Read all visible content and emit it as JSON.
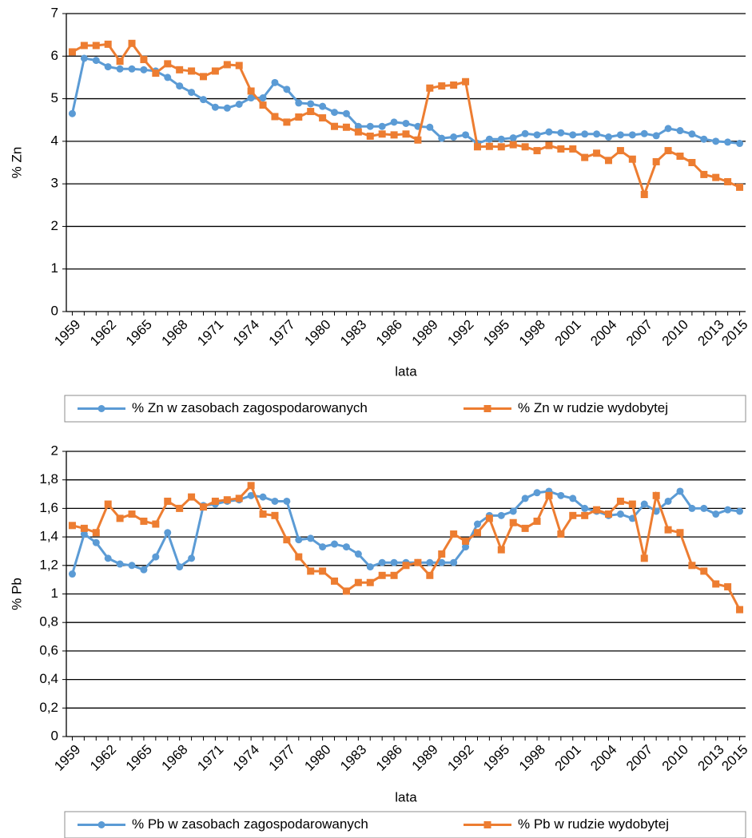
{
  "chart_data": [
    {
      "type": "line",
      "x_label": "lata",
      "y_label": "% Zn",
      "legend": "bottom",
      "grid": true,
      "categories": [
        1959,
        null,
        null,
        1962,
        null,
        null,
        1965,
        null,
        null,
        1968,
        null,
        null,
        1971,
        null,
        null,
        1974,
        null,
        null,
        1977,
        null,
        null,
        1980,
        null,
        null,
        1983,
        null,
        null,
        1986,
        null,
        null,
        1989,
        null,
        null,
        1992,
        null,
        null,
        1995,
        null,
        null,
        1998,
        null,
        null,
        2001,
        null,
        null,
        2004,
        null,
        null,
        2007,
        null,
        null,
        2010,
        null,
        null,
        2013,
        null,
        2015
      ],
      "ylim": [
        0,
        7
      ],
      "yticks": [
        0,
        1,
        2,
        3,
        4,
        5,
        6,
        7
      ],
      "series": [
        {
          "name": "% Zn w zasobach zagospodarowanych",
          "color": "#5b9bd5",
          "marker": "circle",
          "values": [
            4.65,
            5.95,
            5.9,
            5.75,
            5.7,
            5.7,
            5.68,
            5.65,
            5.5,
            5.3,
            5.15,
            4.98,
            4.8,
            4.78,
            4.87,
            5.02,
            5.02,
            5.38,
            5.22,
            4.9,
            4.88,
            4.82,
            4.68,
            4.65,
            4.35,
            4.35,
            4.35,
            4.45,
            4.42,
            4.35,
            4.33,
            4.07,
            4.1,
            4.15,
            3.95,
            4.05,
            4.05,
            4.08,
            4.18,
            4.15,
            4.22,
            4.2,
            4.15,
            4.17,
            4.17,
            4.1,
            4.15,
            4.15,
            4.18,
            4.13,
            4.3,
            4.25,
            4.17,
            4.05,
            4.0,
            3.98,
            3.95
          ]
        },
        {
          "name": "% Zn w rudzie wydobytej",
          "color": "#ed7d31",
          "marker": "square",
          "values": [
            6.1,
            6.25,
            6.25,
            6.28,
            5.88,
            6.3,
            5.92,
            5.6,
            5.82,
            5.68,
            5.65,
            5.52,
            5.65,
            5.8,
            5.78,
            5.18,
            4.85,
            4.58,
            4.45,
            4.57,
            4.7,
            4.55,
            4.35,
            4.33,
            4.22,
            4.12,
            4.17,
            4.15,
            4.17,
            4.03,
            5.25,
            5.3,
            5.32,
            5.4,
            3.87,
            3.88,
            3.87,
            3.92,
            3.87,
            3.78,
            3.9,
            3.82,
            3.82,
            3.62,
            3.72,
            3.55,
            3.78,
            3.58,
            2.75,
            3.52,
            3.78,
            3.65,
            3.5,
            3.22,
            3.15,
            3.05,
            2.92
          ]
        }
      ]
    },
    {
      "type": "line",
      "x_label": "lata",
      "y_label": "% Pb",
      "legend": "bottom",
      "grid": true,
      "categories": [
        1959,
        null,
        null,
        1962,
        null,
        null,
        1965,
        null,
        null,
        1968,
        null,
        null,
        1971,
        null,
        null,
        1974,
        null,
        null,
        1977,
        null,
        null,
        1980,
        null,
        null,
        1983,
        null,
        null,
        1986,
        null,
        null,
        1989,
        null,
        null,
        1992,
        null,
        null,
        1995,
        null,
        null,
        1998,
        null,
        null,
        2001,
        null,
        null,
        2004,
        null,
        null,
        2007,
        null,
        null,
        2010,
        null,
        null,
        2013,
        null,
        2015
      ],
      "ylim": [
        0,
        2
      ],
      "yticks": [
        0,
        {
          "value": 0.2,
          "label": "0,2"
        },
        {
          "value": 0.4,
          "label": "0,4"
        },
        {
          "value": 0.6,
          "label": "0,6"
        },
        {
          "value": 0.8,
          "label": "0,8"
        },
        1,
        {
          "value": 1.2,
          "label": "1,2"
        },
        {
          "value": 1.4,
          "label": "1,4"
        },
        {
          "value": 1.6,
          "label": "1,6"
        },
        {
          "value": 1.8,
          "label": "1,8"
        },
        2
      ],
      "series": [
        {
          "name": "% Pb w zasobach zagospodarowanych",
          "color": "#5b9bd5",
          "marker": "circle",
          "values": [
            1.14,
            1.42,
            1.36,
            1.25,
            1.21,
            1.2,
            1.17,
            1.26,
            1.43,
            1.19,
            1.25,
            1.62,
            1.63,
            1.65,
            1.66,
            1.69,
            1.68,
            1.65,
            1.65,
            1.38,
            1.39,
            1.33,
            1.35,
            1.33,
            1.28,
            1.19,
            1.22,
            1.22,
            1.22,
            1.22,
            1.22,
            1.22,
            1.22,
            1.33,
            1.49,
            1.55,
            1.55,
            1.58,
            1.67,
            1.71,
            1.72,
            1.69,
            1.67,
            1.6,
            1.58,
            1.55,
            1.56,
            1.53,
            1.63,
            1.58,
            1.65,
            1.72,
            1.6,
            1.6,
            1.56,
            1.59,
            1.58
          ]
        },
        {
          "name": "% Pb w rudzie wydobytej",
          "color": "#ed7d31",
          "marker": "square",
          "values": [
            1.48,
            1.46,
            1.43,
            1.63,
            1.53,
            1.56,
            1.51,
            1.49,
            1.65,
            1.6,
            1.68,
            1.61,
            1.65,
            1.66,
            1.67,
            1.76,
            1.56,
            1.55,
            1.38,
            1.26,
            1.16,
            1.16,
            1.09,
            1.02,
            1.08,
            1.08,
            1.13,
            1.13,
            1.2,
            1.22,
            1.13,
            1.28,
            1.42,
            1.37,
            1.43,
            1.53,
            1.31,
            1.5,
            1.46,
            1.51,
            1.69,
            1.42,
            1.55,
            1.55,
            1.59,
            1.56,
            1.65,
            1.63,
            1.25,
            1.69,
            1.45,
            1.43,
            1.2,
            1.16,
            1.07,
            1.05,
            0.89
          ]
        }
      ]
    }
  ]
}
